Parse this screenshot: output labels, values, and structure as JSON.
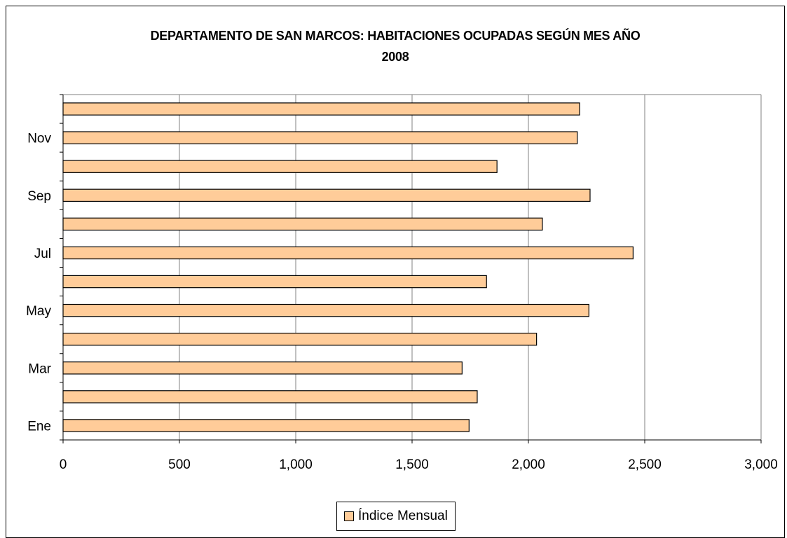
{
  "chart_data": {
    "type": "bar",
    "orientation": "horizontal",
    "title": "DEPARTAMENTO DE SAN MARCOS: HABITACIONES OCUPADAS SEGÚN MES AÑO",
    "subtitle": "2008",
    "xlim": [
      0,
      3000
    ],
    "x_ticks": [
      0,
      500,
      1000,
      1500,
      2000,
      2500,
      3000
    ],
    "x_tick_labels": [
      "0",
      "500",
      "1,000",
      "1,500",
      "2,000",
      "2,500",
      "3,000"
    ],
    "y_tick_labels": [
      "Ene",
      "",
      "Mar",
      "",
      "May",
      "",
      "Jul",
      "",
      "Sep",
      "",
      "Nov",
      ""
    ],
    "series": [
      {
        "name": "Índice Mensual",
        "color": "#FFCC99",
        "values": [
          1745,
          1780,
          1715,
          2035,
          2260,
          1820,
          2450,
          2060,
          2265,
          1865,
          2210,
          2220
        ]
      }
    ],
    "grid": "vertical",
    "legend": "bottom"
  }
}
